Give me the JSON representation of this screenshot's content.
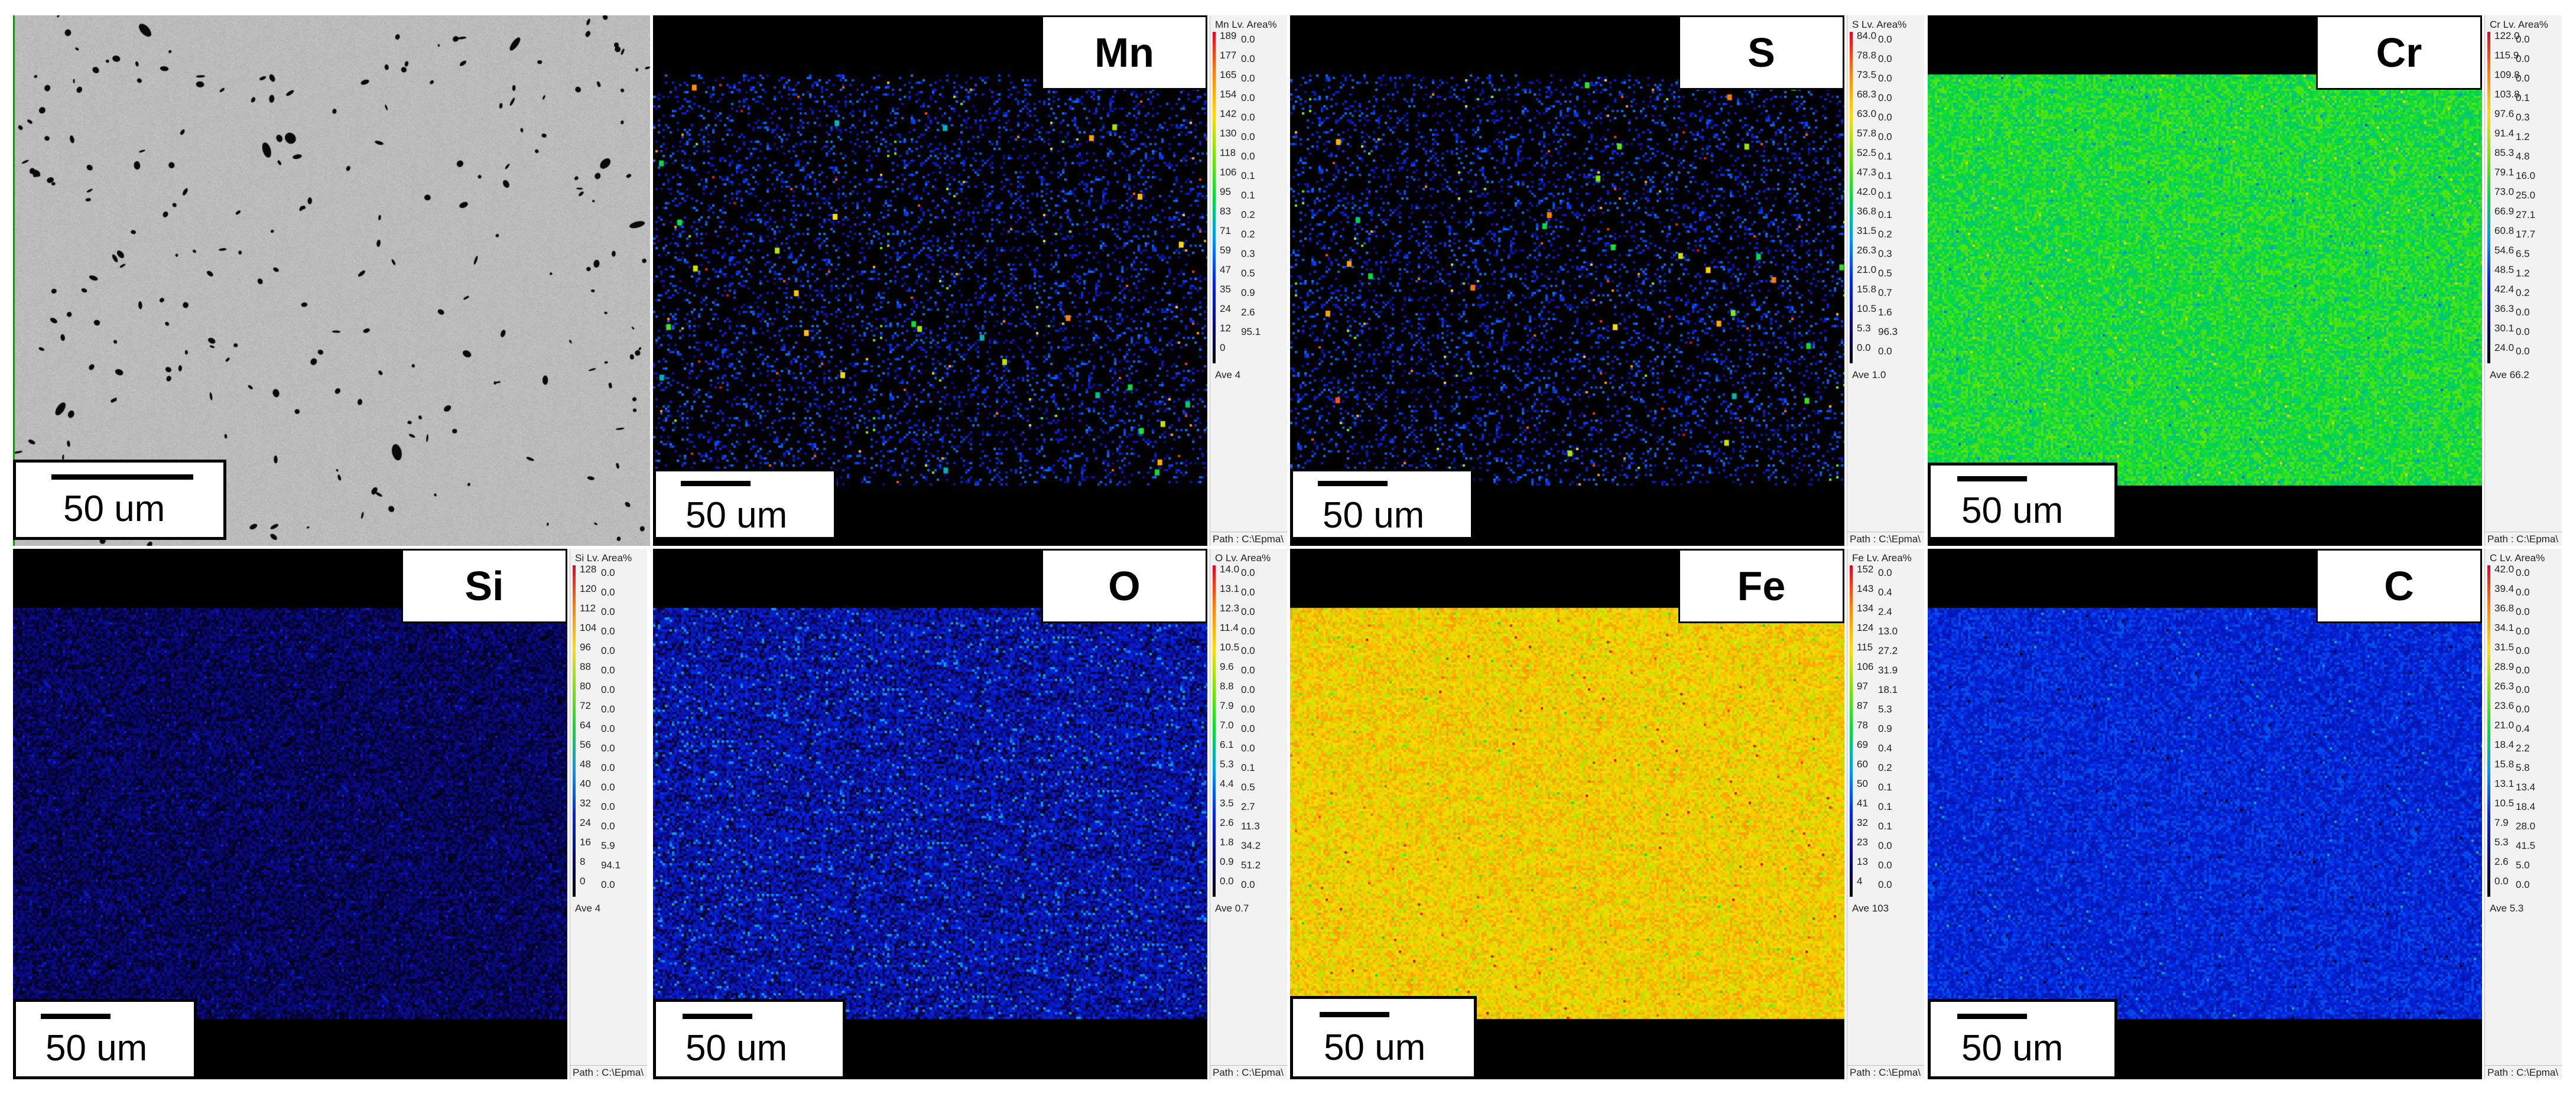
{
  "panels": [
    {
      "id": "sem",
      "type": "sem",
      "label": "",
      "scale_label": "50 um"
    },
    {
      "id": "mn",
      "type": "map",
      "label": "Mn",
      "scale_label": "50 um",
      "color_level": 0.12,
      "spot_density": "sparse",
      "legend": {
        "title": "Mn Lv. Area%",
        "values": [
          "189",
          "177",
          "165",
          "154",
          "142",
          "130",
          "118",
          "106",
          "95",
          "83",
          "71",
          "59",
          "47",
          "35",
          "24",
          "12",
          "0"
        ],
        "areas": [
          "0.0",
          "0.0",
          "0.0",
          "0.0",
          "0.0",
          "0.0",
          "0.0",
          "0.1",
          "0.1",
          "0.2",
          "0.2",
          "0.3",
          "0.5",
          "0.9",
          "2.6",
          "95.1",
          ""
        ],
        "ave": "Ave 4",
        "path": "Path : C:\\Epma\\"
      }
    },
    {
      "id": "s",
      "type": "map",
      "label": "S",
      "scale_label": "50 um",
      "color_level": 0.12,
      "spot_density": "sparse",
      "legend": {
        "title": "S Lv. Area%",
        "values": [
          "84.0",
          "78.8",
          "73.5",
          "68.3",
          "63.0",
          "57.8",
          "52.5",
          "47.3",
          "42.0",
          "36.8",
          "31.5",
          "26.3",
          "21.0",
          "15.8",
          "10.5",
          "5.3",
          "0.0"
        ],
        "areas": [
          "0.0",
          "0.0",
          "0.0",
          "0.0",
          "0.0",
          "0.0",
          "0.1",
          "0.1",
          "0.1",
          "0.1",
          "0.2",
          "0.3",
          "0.5",
          "0.7",
          "1.6",
          "96.3",
          "0.0"
        ],
        "ave": "Ave 1.0",
        "path": "Path : C:\\Epma\\"
      }
    },
    {
      "id": "cr",
      "type": "map",
      "label": "Cr",
      "scale_label": "50 um",
      "color_level": 0.52,
      "spot_density": "dense",
      "legend": {
        "title": "Cr Lv. Area%",
        "values": [
          "122.0",
          "115.9",
          "109.8",
          "103.8",
          "97.6",
          "91.4",
          "85.3",
          "79.1",
          "73.0",
          "66.9",
          "60.8",
          "54.6",
          "48.5",
          "42.4",
          "36.3",
          "30.1",
          "24.0"
        ],
        "areas": [
          "0.0",
          "0.0",
          "0.0",
          "0.1",
          "0.3",
          "1.2",
          "4.8",
          "16.0",
          "25.0",
          "27.1",
          "17.7",
          "6.5",
          "1.2",
          "0.2",
          "0.0",
          "0.0",
          "0.0"
        ],
        "ave": "Ave 66.2",
        "path": "Path : C:\\Epma\\"
      }
    },
    {
      "id": "si",
      "type": "map",
      "label": "Si",
      "scale_label": "50 um",
      "color_level": 0.05,
      "spot_density": "low",
      "legend": {
        "title": "Si Lv. Area%",
        "values": [
          "128",
          "120",
          "112",
          "104",
          "96",
          "88",
          "80",
          "72",
          "64",
          "56",
          "48",
          "40",
          "32",
          "24",
          "16",
          "8",
          "0"
        ],
        "areas": [
          "0.0",
          "0.0",
          "0.0",
          "0.0",
          "0.0",
          "0.0",
          "0.0",
          "0.0",
          "0.0",
          "0.0",
          "0.0",
          "0.0",
          "0.0",
          "0.0",
          "5.9",
          "94.1",
          "0.0"
        ],
        "ave": "Ave 4",
        "path": "Path : C:\\Epma\\"
      }
    },
    {
      "id": "o",
      "type": "map",
      "label": "O",
      "scale_label": "50 um",
      "color_level": 0.12,
      "spot_density": "noisy",
      "legend": {
        "title": "O Lv. Area%",
        "values": [
          "14.0",
          "13.1",
          "12.3",
          "11.4",
          "10.5",
          "9.6",
          "8.8",
          "7.9",
          "7.0",
          "6.1",
          "5.3",
          "4.4",
          "3.5",
          "2.6",
          "1.8",
          "0.9",
          "0.0"
        ],
        "areas": [
          "0.0",
          "0.0",
          "0.0",
          "0.0",
          "0.0",
          "0.0",
          "0.0",
          "0.0",
          "0.0",
          "0.0",
          "0.1",
          "0.5",
          "2.7",
          "11.3",
          "34.2",
          "51.2",
          "0.0"
        ],
        "ave": "Ave 0.7",
        "path": "Path : C:\\Epma\\"
      }
    },
    {
      "id": "fe",
      "type": "map",
      "label": "Fe",
      "scale_label": "50 um",
      "color_level": 0.75,
      "spot_density": "dense",
      "legend": {
        "title": "Fe Lv. Area%",
        "values": [
          "152",
          "143",
          "134",
          "124",
          "115",
          "106",
          "97",
          "87",
          "78",
          "69",
          "60",
          "50",
          "41",
          "32",
          "23",
          "13",
          "4"
        ],
        "areas": [
          "0.0",
          "0.4",
          "2.4",
          "13.0",
          "27.2",
          "31.9",
          "18.1",
          "5.3",
          "0.9",
          "0.4",
          "0.2",
          "0.1",
          "0.1",
          "0.1",
          "0.0",
          "0.0",
          "0.0"
        ],
        "ave": "Ave 103",
        "path": "Path : C:\\Epma\\"
      }
    },
    {
      "id": "c",
      "type": "map",
      "label": "C",
      "scale_label": "50 um",
      "color_level": 0.2,
      "spot_density": "dense",
      "legend": {
        "title": "C Lv. Area%",
        "values": [
          "42.0",
          "39.4",
          "36.8",
          "34.1",
          "31.5",
          "28.9",
          "26.3",
          "23.6",
          "21.0",
          "18.4",
          "15.8",
          "13.1",
          "10.5",
          "7.9",
          "5.3",
          "2.6",
          "0.0"
        ],
        "areas": [
          "0.0",
          "0.0",
          "0.0",
          "0.0",
          "0.0",
          "0.0",
          "0.0",
          "0.0",
          "0.4",
          "2.2",
          "5.8",
          "13.4",
          "18.4",
          "28.0",
          "41.5",
          "5.0",
          "0.0"
        ],
        "ave": "Ave 5.3",
        "path": "Path : C:\\Epma\\"
      }
    }
  ]
}
